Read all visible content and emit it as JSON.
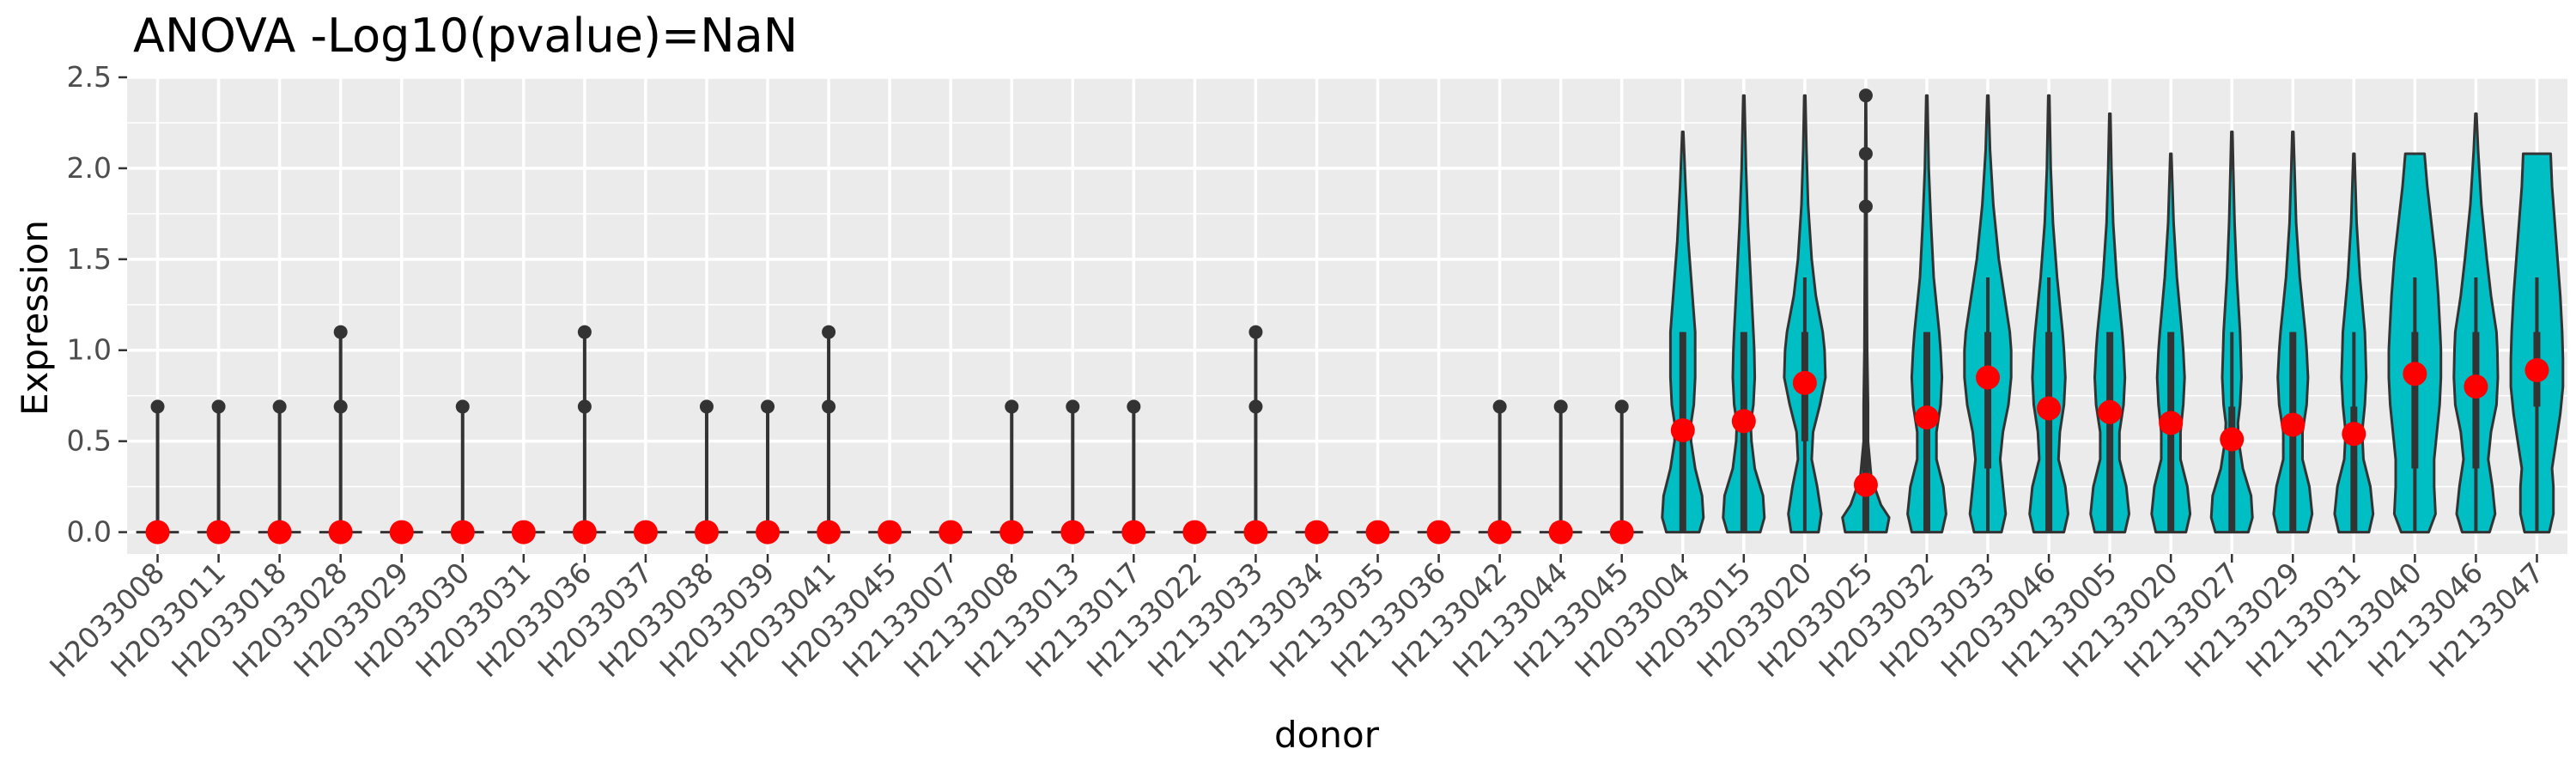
{
  "chart_data": {
    "type": "violin",
    "title": "ANOVA -Log10(pvalue)=NaN",
    "xlabel": "donor",
    "ylabel": "Expression",
    "ylim": [
      -0.12,
      2.5
    ],
    "yticks": [
      0.0,
      0.5,
      1.0,
      1.5,
      2.0,
      2.5
    ],
    "ytick_labels": [
      "0.0",
      "0.5",
      "1.0",
      "1.5",
      "2.0",
      "2.5"
    ],
    "grid": true,
    "legend": "none",
    "colors": {
      "panel": "#ebebeb",
      "grid": "#ffffff",
      "violin_fill": "#00bfc4",
      "outline": "#333333",
      "mean_point": "#ff0000"
    },
    "categories": [
      "H2033008",
      "H2033011",
      "H2033018",
      "H2033028",
      "H2033029",
      "H2033030",
      "H2033031",
      "H2033036",
      "H2033037",
      "H2033038",
      "H2033039",
      "H2033041",
      "H2033045",
      "H2133007",
      "H2133008",
      "H2133013",
      "H2133017",
      "H2133022",
      "H2133033",
      "H2133034",
      "H2133035",
      "H2133036",
      "H2133042",
      "H2133044",
      "H2133045",
      "H2033004",
      "H2033015",
      "H2033020",
      "H2033025",
      "H2033032",
      "H2033033",
      "H2033046",
      "H2133005",
      "H2133020",
      "H2133027",
      "H2133029",
      "H2133031",
      "H2133040",
      "H2133046",
      "H2133047"
    ],
    "means": [
      0,
      0,
      0,
      0,
      0,
      0,
      0,
      0,
      0,
      0,
      0,
      0,
      0,
      0,
      0,
      0,
      0,
      0,
      0,
      0,
      0,
      0,
      0,
      0,
      0,
      0.56,
      0.61,
      0.82,
      0.26,
      0.63,
      0.85,
      0.68,
      0.66,
      0.6,
      0.51,
      0.59,
      0.54,
      0.87,
      0.8,
      0.89
    ],
    "max_values": [
      0.69,
      0.69,
      0.69,
      1.1,
      0,
      0.69,
      0,
      1.1,
      0,
      0.69,
      0.69,
      1.1,
      0,
      0,
      0.69,
      0.69,
      0.69,
      0,
      1.1,
      0,
      0,
      0,
      0.69,
      0.69,
      0.69,
      2.2,
      2.4,
      2.4,
      2.4,
      2.4,
      2.4,
      2.4,
      2.3,
      2.08,
      2.2,
      2.2,
      2.08,
      2.08,
      2.3,
      2.08
    ],
    "outliers": [
      [
        0.69
      ],
      [
        0.69
      ],
      [
        0.69
      ],
      [
        0.69,
        1.1
      ],
      [],
      [
        0.69
      ],
      [],
      [
        0.69,
        1.1
      ],
      [],
      [
        0.69
      ],
      [
        0.69
      ],
      [
        0.69,
        1.1
      ],
      [],
      [],
      [
        0.69
      ],
      [
        0.69
      ],
      [
        0.69
      ],
      [],
      [
        0.69,
        1.1
      ],
      [],
      [],
      [],
      [
        0.69
      ],
      [
        0.69
      ],
      [
        0.69
      ],
      [],
      [],
      [],
      [
        1.79,
        2.08,
        2.4
      ],
      [],
      [],
      [],
      [],
      [],
      [],
      [],
      [],
      [],
      [],
      []
    ],
    "box_stats": [
      null,
      null,
      null,
      null,
      null,
      null,
      null,
      null,
      null,
      null,
      null,
      null,
      null,
      null,
      null,
      null,
      null,
      null,
      null,
      null,
      null,
      null,
      null,
      null,
      null,
      {
        "q1": 0,
        "q3": 1.1,
        "whisker_low": 0,
        "whisker_high": 1.1
      },
      {
        "q1": 0,
        "q3": 1.1,
        "whisker_low": 0,
        "whisker_high": 1.1
      },
      {
        "q1": 0.5,
        "q3": 1.1,
        "whisker_low": 0,
        "whisker_high": 1.4
      },
      {
        "q1": 0,
        "q3": 0.45,
        "whisker_low": 0,
        "whisker_high": 1.1
      },
      {
        "q1": 0,
        "q3": 1.1,
        "whisker_low": 0,
        "whisker_high": 1.1
      },
      {
        "q1": 0.35,
        "q3": 1.1,
        "whisker_low": 0,
        "whisker_high": 1.4
      },
      {
        "q1": 0,
        "q3": 1.1,
        "whisker_low": 0,
        "whisker_high": 1.4
      },
      {
        "q1": 0,
        "q3": 1.1,
        "whisker_low": 0,
        "whisker_high": 1.1
      },
      {
        "q1": 0,
        "q3": 1.1,
        "whisker_low": 0,
        "whisker_high": 1.1
      },
      {
        "q1": 0,
        "q3": 0.69,
        "whisker_low": 0,
        "whisker_high": 1.1
      },
      {
        "q1": 0,
        "q3": 1.1,
        "whisker_low": 0,
        "whisker_high": 1.1
      },
      {
        "q1": 0,
        "q3": 0.69,
        "whisker_low": 0,
        "whisker_high": 1.1
      },
      {
        "q1": 0.35,
        "q3": 1.1,
        "whisker_low": 0,
        "whisker_high": 1.4
      },
      {
        "q1": 0.35,
        "q3": 1.1,
        "whisker_low": 0,
        "whisker_high": 1.4
      },
      {
        "q1": 0.69,
        "q3": 1.1,
        "whisker_low": 0,
        "whisker_high": 1.4
      }
    ],
    "violin_profiles": [
      null,
      null,
      null,
      null,
      null,
      null,
      null,
      null,
      null,
      null,
      null,
      null,
      null,
      null,
      null,
      null,
      null,
      null,
      null,
      null,
      null,
      null,
      null,
      null,
      null,
      [
        [
          0,
          0.6
        ],
        [
          0.08,
          0.75
        ],
        [
          0.2,
          0.7
        ],
        [
          0.35,
          0.45
        ],
        [
          0.5,
          0.3
        ],
        [
          0.6,
          0.3
        ],
        [
          0.7,
          0.4
        ],
        [
          0.85,
          0.45
        ],
        [
          1.0,
          0.45
        ],
        [
          1.1,
          0.45
        ],
        [
          1.3,
          0.35
        ],
        [
          1.6,
          0.2
        ],
        [
          1.9,
          0.1
        ],
        [
          2.2,
          0.02
        ]
      ],
      [
        [
          0,
          0.6
        ],
        [
          0.08,
          0.75
        ],
        [
          0.2,
          0.7
        ],
        [
          0.35,
          0.4
        ],
        [
          0.5,
          0.28
        ],
        [
          0.6,
          0.25
        ],
        [
          0.7,
          0.35
        ],
        [
          0.85,
          0.4
        ],
        [
          1.0,
          0.38
        ],
        [
          1.1,
          0.35
        ],
        [
          1.4,
          0.25
        ],
        [
          1.7,
          0.15
        ],
        [
          2.0,
          0.08
        ],
        [
          2.4,
          0.02
        ]
      ],
      [
        [
          0,
          0.5
        ],
        [
          0.1,
          0.6
        ],
        [
          0.25,
          0.45
        ],
        [
          0.4,
          0.25
        ],
        [
          0.55,
          0.3
        ],
        [
          0.7,
          0.55
        ],
        [
          0.85,
          0.75
        ],
        [
          1.0,
          0.72
        ],
        [
          1.1,
          0.65
        ],
        [
          1.3,
          0.4
        ],
        [
          1.5,
          0.25
        ],
        [
          1.8,
          0.12
        ],
        [
          2.1,
          0.06
        ],
        [
          2.4,
          0.02
        ]
      ],
      [
        [
          0,
          0.75
        ],
        [
          0.08,
          0.85
        ],
        [
          0.15,
          0.55
        ],
        [
          0.3,
          0.2
        ],
        [
          0.5,
          0.08
        ],
        [
          0.7,
          0.08
        ],
        [
          1.0,
          0.05
        ],
        [
          1.3,
          0.04
        ],
        [
          1.7,
          0.03
        ],
        [
          2.1,
          0.02
        ],
        [
          2.4,
          0.01
        ]
      ],
      [
        [
          0,
          0.55
        ],
        [
          0.1,
          0.7
        ],
        [
          0.25,
          0.6
        ],
        [
          0.4,
          0.35
        ],
        [
          0.55,
          0.35
        ],
        [
          0.7,
          0.5
        ],
        [
          0.85,
          0.55
        ],
        [
          1.0,
          0.5
        ],
        [
          1.1,
          0.45
        ],
        [
          1.4,
          0.25
        ],
        [
          1.7,
          0.15
        ],
        [
          2.0,
          0.07
        ],
        [
          2.4,
          0.02
        ]
      ],
      [
        [
          0,
          0.5
        ],
        [
          0.1,
          0.65
        ],
        [
          0.25,
          0.55
        ],
        [
          0.4,
          0.45
        ],
        [
          0.55,
          0.55
        ],
        [
          0.7,
          0.75
        ],
        [
          0.85,
          0.85
        ],
        [
          1.0,
          0.85
        ],
        [
          1.1,
          0.8
        ],
        [
          1.3,
          0.6
        ],
        [
          1.5,
          0.4
        ],
        [
          1.8,
          0.2
        ],
        [
          2.1,
          0.08
        ],
        [
          2.4,
          0.02
        ]
      ],
      [
        [
          0,
          0.55
        ],
        [
          0.1,
          0.7
        ],
        [
          0.25,
          0.6
        ],
        [
          0.4,
          0.35
        ],
        [
          0.55,
          0.4
        ],
        [
          0.7,
          0.55
        ],
        [
          0.85,
          0.6
        ],
        [
          1.0,
          0.55
        ],
        [
          1.1,
          0.5
        ],
        [
          1.4,
          0.3
        ],
        [
          1.7,
          0.15
        ],
        [
          2.0,
          0.07
        ],
        [
          2.4,
          0.02
        ]
      ],
      [
        [
          0,
          0.55
        ],
        [
          0.1,
          0.7
        ],
        [
          0.25,
          0.6
        ],
        [
          0.4,
          0.35
        ],
        [
          0.55,
          0.35
        ],
        [
          0.7,
          0.5
        ],
        [
          0.85,
          0.55
        ],
        [
          1.0,
          0.5
        ],
        [
          1.1,
          0.45
        ],
        [
          1.4,
          0.25
        ],
        [
          1.7,
          0.12
        ],
        [
          2.0,
          0.06
        ],
        [
          2.3,
          0.02
        ]
      ],
      [
        [
          0,
          0.55
        ],
        [
          0.1,
          0.7
        ],
        [
          0.25,
          0.6
        ],
        [
          0.4,
          0.35
        ],
        [
          0.55,
          0.35
        ],
        [
          0.7,
          0.45
        ],
        [
          0.85,
          0.5
        ],
        [
          1.0,
          0.45
        ],
        [
          1.1,
          0.4
        ],
        [
          1.4,
          0.22
        ],
        [
          1.7,
          0.1
        ],
        [
          2.08,
          0.02
        ]
      ],
      [
        [
          0,
          0.6
        ],
        [
          0.08,
          0.75
        ],
        [
          0.2,
          0.7
        ],
        [
          0.35,
          0.4
        ],
        [
          0.5,
          0.25
        ],
        [
          0.6,
          0.22
        ],
        [
          0.7,
          0.3
        ],
        [
          0.85,
          0.35
        ],
        [
          1.0,
          0.32
        ],
        [
          1.1,
          0.3
        ],
        [
          1.4,
          0.18
        ],
        [
          1.7,
          0.1
        ],
        [
          2.0,
          0.05
        ],
        [
          2.2,
          0.02
        ]
      ],
      [
        [
          0,
          0.55
        ],
        [
          0.1,
          0.7
        ],
        [
          0.25,
          0.6
        ],
        [
          0.4,
          0.35
        ],
        [
          0.55,
          0.35
        ],
        [
          0.7,
          0.5
        ],
        [
          0.85,
          0.55
        ],
        [
          1.0,
          0.5
        ],
        [
          1.1,
          0.45
        ],
        [
          1.4,
          0.25
        ],
        [
          1.7,
          0.12
        ],
        [
          2.0,
          0.06
        ],
        [
          2.2,
          0.02
        ]
      ],
      [
        [
          0,
          0.55
        ],
        [
          0.1,
          0.7
        ],
        [
          0.25,
          0.6
        ],
        [
          0.4,
          0.35
        ],
        [
          0.55,
          0.3
        ],
        [
          0.7,
          0.4
        ],
        [
          0.85,
          0.45
        ],
        [
          1.0,
          0.42
        ],
        [
          1.1,
          0.4
        ],
        [
          1.4,
          0.22
        ],
        [
          1.7,
          0.1
        ],
        [
          2.08,
          0.02
        ]
      ],
      [
        [
          0,
          0.5
        ],
        [
          0.1,
          0.75
        ],
        [
          0.25,
          0.7
        ],
        [
          0.4,
          0.7
        ],
        [
          0.55,
          0.8
        ],
        [
          0.7,
          0.9
        ],
        [
          0.85,
          0.95
        ],
        [
          1.0,
          0.95
        ],
        [
          1.1,
          0.92
        ],
        [
          1.3,
          0.85
        ],
        [
          1.5,
          0.75
        ],
        [
          1.7,
          0.6
        ],
        [
          1.9,
          0.45
        ],
        [
          2.08,
          0.35
        ]
      ],
      [
        [
          0,
          0.5
        ],
        [
          0.1,
          0.7
        ],
        [
          0.25,
          0.6
        ],
        [
          0.4,
          0.45
        ],
        [
          0.55,
          0.55
        ],
        [
          0.7,
          0.75
        ],
        [
          0.85,
          0.8
        ],
        [
          1.0,
          0.78
        ],
        [
          1.1,
          0.75
        ],
        [
          1.3,
          0.55
        ],
        [
          1.5,
          0.4
        ],
        [
          1.8,
          0.2
        ],
        [
          2.1,
          0.08
        ],
        [
          2.3,
          0.02
        ]
      ],
      [
        [
          0,
          0.45
        ],
        [
          0.1,
          0.6
        ],
        [
          0.25,
          0.6
        ],
        [
          0.35,
          0.55
        ],
        [
          0.5,
          0.7
        ],
        [
          0.65,
          0.85
        ],
        [
          0.8,
          0.95
        ],
        [
          0.95,
          0.95
        ],
        [
          1.1,
          0.92
        ],
        [
          1.3,
          0.85
        ],
        [
          1.5,
          0.75
        ],
        [
          1.7,
          0.65
        ],
        [
          1.9,
          0.55
        ],
        [
          2.08,
          0.5
        ]
      ]
    ]
  }
}
